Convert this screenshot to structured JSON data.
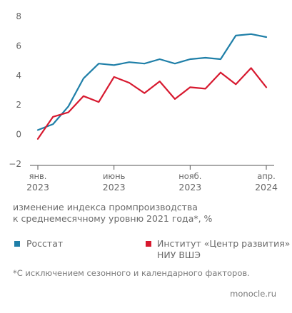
{
  "chart_data": {
    "type": "line",
    "x": [
      "2023-01",
      "2023-02",
      "2023-03",
      "2023-04",
      "2023-05",
      "2023-06",
      "2023-07",
      "2023-08",
      "2023-09",
      "2023-10",
      "2023-11",
      "2023-12",
      "2024-01",
      "2024-02",
      "2024-03",
      "2024-04"
    ],
    "ylim": [
      -2,
      8
    ],
    "yticks": [
      -2,
      0,
      2,
      4,
      6,
      8
    ],
    "xtick_labels": [
      {
        "x": "2023-01",
        "month": "янв.",
        "year": "2023"
      },
      {
        "x": "2023-06",
        "month": "июнь",
        "year": "2023"
      },
      {
        "x": "2023-11",
        "month": "нояб.",
        "year": "2023"
      },
      {
        "x": "2024-04",
        "month": "апр.",
        "year": "2024"
      }
    ],
    "series": [
      {
        "name": "Росстат",
        "color": "#1f7fa8",
        "values": [
          0.3,
          0.7,
          1.9,
          3.8,
          4.8,
          4.7,
          4.9,
          4.8,
          5.1,
          4.8,
          5.1,
          5.2,
          5.1,
          6.7,
          6.8,
          6.6
        ]
      },
      {
        "name": "Институт «Центр развития» НИУ ВШЭ",
        "color": "#d7192f",
        "values": [
          -0.3,
          1.2,
          1.5,
          2.6,
          2.2,
          3.9,
          3.5,
          2.8,
          3.6,
          2.4,
          3.2,
          3.1,
          4.2,
          3.4,
          4.5,
          3.2
        ]
      }
    ],
    "grid": false,
    "ylabel": "изменение индекса промпроизводства к среднемесячному уровню 2021 года*, %"
  },
  "caption_line1": "изменение индекса промпроизводства",
  "caption_line2": "к среднемесячному уровню 2021 года*, %",
  "legend": {
    "rosstat": "Росстат",
    "hse_line1": "Институт «Центр развития»",
    "hse_line2": "НИУ ВШЭ"
  },
  "footnote": "*С исключением сезонного и календарного факторов.",
  "brand": "monocle.ru"
}
